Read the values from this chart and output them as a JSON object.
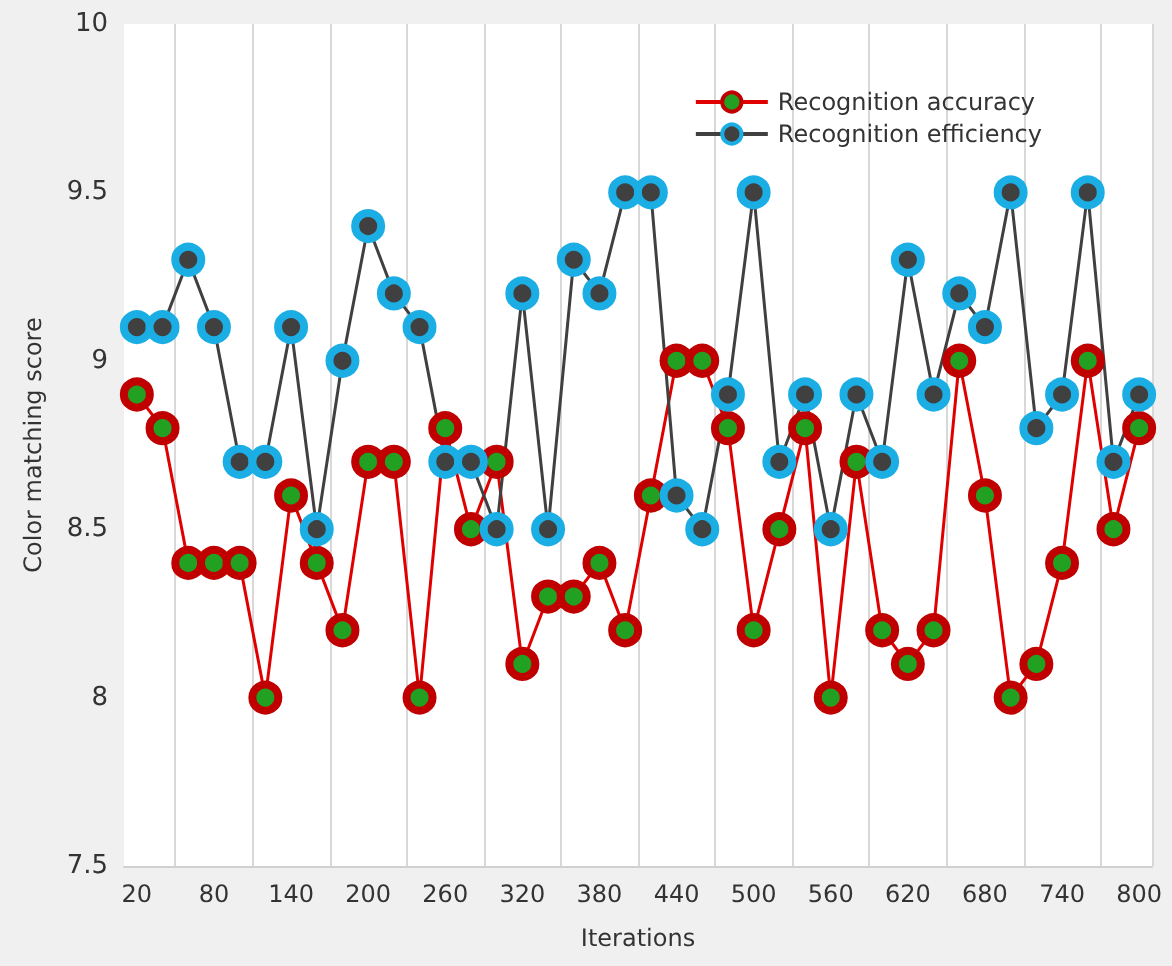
{
  "chart_data": {
    "type": "line",
    "xlabel": "Iterations",
    "ylabel": "Color matching score",
    "categories": [
      "20",
      null,
      null,
      "80",
      null,
      null,
      "140",
      null,
      null,
      "200",
      null,
      null,
      "260",
      null,
      null,
      "320",
      null,
      null,
      "380",
      null,
      null,
      "440",
      null,
      null,
      "500",
      null,
      null,
      "560",
      null,
      null,
      "620",
      null,
      null,
      "680",
      null,
      null,
      "740",
      null,
      null,
      "800"
    ],
    "series": [
      {
        "name": "Recognition accuracy",
        "color": "#c00000",
        "values": [
          8.9,
          8.8,
          8.4,
          8.4,
          8.4,
          8.0,
          8.6,
          8.4,
          8.2,
          8.7,
          8.7,
          8.0,
          8.8,
          8.5,
          8.7,
          8.1,
          8.3,
          8.3,
          8.4,
          8.2,
          8.6,
          9.0,
          9.0,
          8.8,
          8.2,
          8.5,
          8.8,
          8.0,
          8.7,
          8.2,
          8.1,
          8.2,
          9.0,
          8.6,
          8.0,
          8.1,
          8.4,
          9.0,
          8.5,
          8.8
        ]
      },
      {
        "name": "Recognition efficiency",
        "color": "#1aaee5",
        "values": [
          9.1,
          9.1,
          9.3,
          9.1,
          8.7,
          8.7,
          9.1,
          8.5,
          9.0,
          9.4,
          9.2,
          9.1,
          8.7,
          8.7,
          8.5,
          9.2,
          8.5,
          9.3,
          9.2,
          9.5,
          9.5,
          8.6,
          8.5,
          8.9,
          9.5,
          8.7,
          8.9,
          8.5,
          8.9,
          8.7,
          9.3,
          8.9,
          9.2,
          9.1,
          9.5,
          8.8,
          8.9,
          9.5,
          8.7,
          8.9
        ]
      }
    ],
    "ylim": [
      7.5,
      10
    ],
    "yticks": [
      7.5,
      8,
      8.5,
      9,
      9.5,
      10
    ],
    "grid": "x",
    "legend": "top right",
    "marker": "circle"
  }
}
